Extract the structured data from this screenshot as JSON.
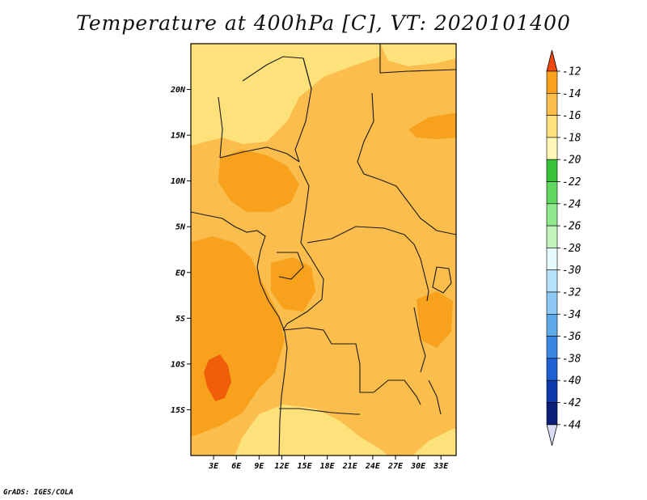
{
  "title": "Temperature at 400hPa [C], VT: 2020101400",
  "credit": "GrADS: IGES/COLA",
  "map": {
    "lon_range": [
      0,
      35
    ],
    "lat_range": [
      -20,
      25
    ],
    "lat_ticks": [
      {
        "value": 20,
        "label": "20N"
      },
      {
        "value": 15,
        "label": "15N"
      },
      {
        "value": 10,
        "label": "10N"
      },
      {
        "value": 5,
        "label": "5N"
      },
      {
        "value": 0,
        "label": "EQ"
      },
      {
        "value": -5,
        "label": "5S"
      },
      {
        "value": -10,
        "label": "10S"
      },
      {
        "value": -15,
        "label": "15S"
      }
    ],
    "lon_ticks": [
      {
        "value": 3,
        "label": "3E"
      },
      {
        "value": 6,
        "label": "6E"
      },
      {
        "value": 9,
        "label": "9E"
      },
      {
        "value": 12,
        "label": "12E"
      },
      {
        "value": 15,
        "label": "15E"
      },
      {
        "value": 18,
        "label": "18E"
      },
      {
        "value": 21,
        "label": "21E"
      },
      {
        "value": 24,
        "label": "24E"
      },
      {
        "value": 27,
        "label": "27E"
      },
      {
        "value": 30,
        "label": "30E"
      },
      {
        "value": 33,
        "label": "33E"
      }
    ],
    "fill_colors": {
      "-20_-18": "#fde27c",
      "-18_-16": "#fbbe4c",
      "-16_-14": "#f7a11d",
      "-14_-12": "#f05e09"
    }
  },
  "colorbar": {
    "top_color": "#f04a10",
    "bottom_color": "#d8dcf4",
    "levels": [
      {
        "label": "-12",
        "color": "#f05e0c"
      },
      {
        "label": "-14",
        "color": "#f7a11d"
      },
      {
        "label": "-16",
        "color": "#fbbe4c"
      },
      {
        "label": "-18",
        "color": "#fde27c"
      },
      {
        "label": "-20",
        "color": "#fff6b8"
      },
      {
        "label": "-22",
        "color": "#37c23a"
      },
      {
        "label": "-24",
        "color": "#62d862"
      },
      {
        "label": "-26",
        "color": "#8ee88c"
      },
      {
        "label": "-28",
        "color": "#c2f3bc"
      },
      {
        "label": "-30",
        "color": "#e6fbfc"
      },
      {
        "label": "-32",
        "color": "#b6e2fa"
      },
      {
        "label": "-34",
        "color": "#8ec8f4"
      },
      {
        "label": "-36",
        "color": "#5eaae8"
      },
      {
        "label": "-38",
        "color": "#3a86e0"
      },
      {
        "label": "-40",
        "color": "#1f60d2"
      },
      {
        "label": "-42",
        "color": "#0e3ab0"
      },
      {
        "label": "-44",
        "color": "#0a1f78"
      }
    ]
  }
}
